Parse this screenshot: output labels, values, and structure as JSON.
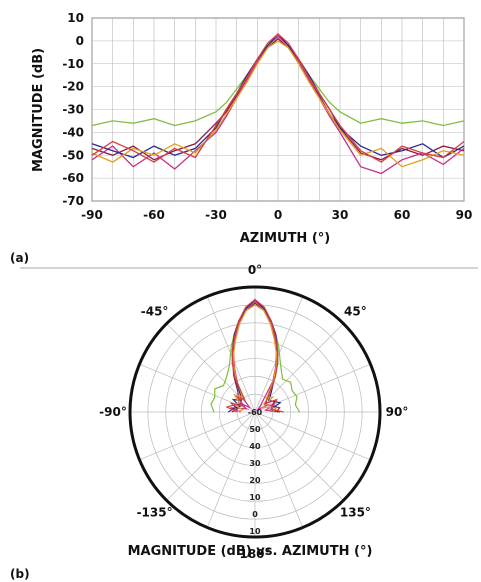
{
  "chart_data": [
    {
      "panel": "(a)",
      "type": "line",
      "xlabel": "AZIMUTH (°)",
      "ylabel": "MAGNITUDE (dB)",
      "xlim": [
        -90,
        90
      ],
      "ylim": [
        -70,
        10
      ],
      "xticks": [
        "-90",
        "-60",
        "-30",
        "0",
        "30",
        "60",
        "90"
      ],
      "yticks": [
        "10",
        "0",
        "-10",
        "-20",
        "-30",
        "-40",
        "-50",
        "-60",
        "-70"
      ],
      "grid": true,
      "x": [
        -90,
        -80,
        -70,
        -60,
        -50,
        -40,
        -30,
        -25,
        -20,
        -15,
        -10,
        -5,
        0,
        5,
        10,
        15,
        20,
        25,
        30,
        40,
        50,
        60,
        70,
        80,
        90
      ],
      "series": [
        {
          "color": "#7fbf3f",
          "values": [
            -37,
            -35,
            -36,
            -34,
            -37,
            -35,
            -31,
            -27,
            -21,
            -15,
            -8,
            -2,
            2,
            -2,
            -8,
            -15,
            -21,
            -27,
            -31,
            -36,
            -34,
            -36,
            -35,
            -37,
            -35
          ]
        },
        {
          "color": "#8b1a4a",
          "values": [
            -47,
            -50,
            -46,
            -52,
            -48,
            -45,
            -36,
            -31,
            -24,
            -17,
            -9,
            -3,
            1,
            -3,
            -9,
            -17,
            -24,
            -32,
            -38,
            -49,
            -52,
            -47,
            -50,
            -46,
            -48
          ]
        },
        {
          "color": "#c8308a",
          "values": [
            -52,
            -46,
            -55,
            -49,
            -56,
            -48,
            -40,
            -33,
            -25,
            -17,
            -9,
            -2,
            2,
            -2,
            -9,
            -17,
            -25,
            -33,
            -40,
            -55,
            -58,
            -52,
            -49,
            -54,
            -47
          ]
        },
        {
          "color": "#2a2a8a",
          "values": [
            -45,
            -48,
            -51,
            -46,
            -50,
            -47,
            -38,
            -30,
            -23,
            -15,
            -8,
            -2,
            3,
            -2,
            -8,
            -15,
            -23,
            -30,
            -38,
            -46,
            -50,
            -48,
            -45,
            -51,
            -46
          ]
        },
        {
          "color": "#e0a020",
          "values": [
            -49,
            -53,
            -47,
            -50,
            -45,
            -49,
            -39,
            -32,
            -25,
            -18,
            -10,
            -3,
            0,
            -3,
            -10,
            -18,
            -25,
            -32,
            -39,
            -50,
            -47,
            -55,
            -52,
            -48,
            -50
          ]
        },
        {
          "color": "#d64040",
          "values": [
            -50,
            -44,
            -48,
            -53,
            -47,
            -51,
            -37,
            -30,
            -23,
            -16,
            -8,
            -1,
            3,
            -1,
            -8,
            -16,
            -23,
            -30,
            -37,
            -48,
            -53,
            -46,
            -49,
            -51,
            -44
          ]
        }
      ]
    },
    {
      "panel": "(b)",
      "type": "line",
      "title": "MAGNITUDE (dB) vs. AZIMUTH (°)",
      "angle_labels": [
        "0°",
        "45°",
        "90°",
        "135°",
        "180°",
        "-135°",
        "-90°",
        "-45°"
      ],
      "radial_labels": [
        "-60",
        "50",
        "40",
        "30",
        "20",
        "10",
        "0",
        "10"
      ],
      "x": [
        -90,
        -80,
        -70,
        -60,
        -50,
        -40,
        -30,
        -25,
        -20,
        -15,
        -10,
        -5,
        0,
        5,
        10,
        15,
        20,
        25,
        30,
        40,
        50,
        60,
        70,
        80,
        90
      ],
      "series": [
        {
          "color": "#7fbf3f",
          "values": [
            -37,
            -35,
            -36,
            -34,
            -37,
            -35,
            -31,
            -27,
            -21,
            -15,
            -8,
            -2,
            2,
            -2,
            -8,
            -15,
            -21,
            -27,
            -31,
            -36,
            -34,
            -36,
            -35,
            -37,
            -35
          ]
        },
        {
          "color": "#8b1a4a",
          "values": [
            -47,
            -50,
            -46,
            -52,
            -48,
            -45,
            -36,
            -31,
            -24,
            -17,
            -9,
            -3,
            1,
            -3,
            -9,
            -17,
            -24,
            -32,
            -38,
            -49,
            -52,
            -47,
            -50,
            -46,
            -48
          ]
        },
        {
          "color": "#c8308a",
          "values": [
            -52,
            -46,
            -55,
            -49,
            -56,
            -48,
            -40,
            -33,
            -25,
            -17,
            -9,
            -2,
            2,
            -2,
            -9,
            -17,
            -25,
            -33,
            -40,
            -55,
            -58,
            -52,
            -49,
            -54,
            -47
          ]
        },
        {
          "color": "#2a2a8a",
          "values": [
            -45,
            -48,
            -51,
            -46,
            -50,
            -47,
            -38,
            -30,
            -23,
            -15,
            -8,
            -2,
            3,
            -2,
            -8,
            -15,
            -23,
            -30,
            -38,
            -46,
            -50,
            -48,
            -45,
            -51,
            -46
          ]
        },
        {
          "color": "#e0a020",
          "values": [
            -49,
            -53,
            -47,
            -50,
            -45,
            -49,
            -39,
            -32,
            -25,
            -18,
            -10,
            -3,
            0,
            -3,
            -10,
            -18,
            -25,
            -32,
            -39,
            -50,
            -47,
            -55,
            -52,
            -48,
            -50
          ]
        },
        {
          "color": "#d64040",
          "values": [
            -50,
            -44,
            -48,
            -53,
            -47,
            -51,
            -37,
            -30,
            -23,
            -16,
            -8,
            -1,
            3,
            -1,
            -8,
            -16,
            -23,
            -30,
            -37,
            -48,
            -53,
            -46,
            -49,
            -51,
            -44
          ]
        }
      ]
    }
  ]
}
